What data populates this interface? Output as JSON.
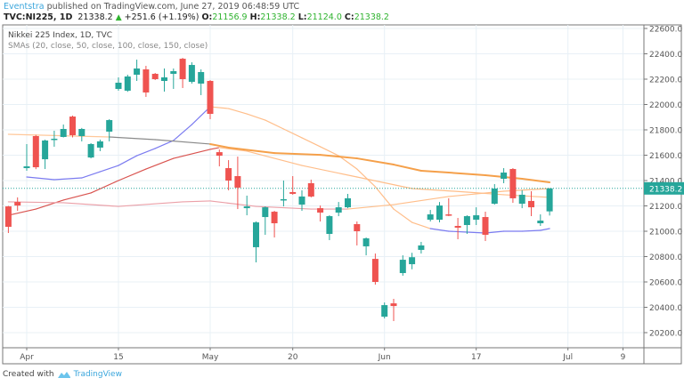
{
  "header": {
    "author": "Eventstra",
    "published_text": "published on TradingView.com, June 27, 2019 06:48:59 UTC",
    "symbol": "TVC:NI225, 1D",
    "last": "21338.2",
    "change": "+251.6 (+1.19%)",
    "o_label": "O:",
    "o": "21156.9",
    "h_label": "H:",
    "h": "21338.2",
    "l_label": "L:",
    "l": "21124.0",
    "c_label": "C:",
    "c": "21338.2",
    "change_icon": "triangle-up-icon"
  },
  "legend": {
    "title": "Nikkei 225 Index, 1D, TVC",
    "studies": "SMAs (20, close, 50, close, 100, close, 150, close)"
  },
  "footer": {
    "created_with": "Created with",
    "brand": "TradingView",
    "logo_icon": "tradingview-logo-icon"
  },
  "colors": {
    "up": "#26a69a",
    "down": "#ef5350",
    "price_line": "#26a69a",
    "grid": "#e8f0f6",
    "axis": "#777777"
  },
  "chart_data": {
    "type": "candlestick",
    "title": "Nikkei 225 Index, 1D, TVC",
    "ylim": [
      20100,
      22650
    ],
    "yticks": [
      "20200.0",
      "20400.0",
      "20600.0",
      "20800.0",
      "21000.0",
      "21200.0",
      "21400.0",
      "21600.0",
      "21800.0",
      "22000.0",
      "22200.0",
      "22400.0",
      "22600.0"
    ],
    "xticks": [
      {
        "label": "Apr",
        "date": "2019-04-01"
      },
      {
        "label": "15",
        "date": "2019-04-15"
      },
      {
        "label": "May",
        "date": "2019-05-07"
      },
      {
        "label": "20",
        "date": "2019-05-20"
      },
      {
        "label": "Jun",
        "date": "2019-06-03"
      },
      {
        "label": "17",
        "date": "2019-06-17"
      },
      {
        "label": "Jul",
        "date": "2019-07-01"
      },
      {
        "label": "9",
        "date": "2019-07-09"
      }
    ],
    "grid": true,
    "last_price_label": "21338.2",
    "last_price": 21338.2,
    "candles": [
      {
        "date": "2019-03-28",
        "o": 21196,
        "h": 21200,
        "l": 20986,
        "c": 21035
      },
      {
        "date": "2019-03-29",
        "o": 21231,
        "h": 21267,
        "l": 21161,
        "c": 21203
      },
      {
        "date": "2019-04-01",
        "o": 21498,
        "h": 21688,
        "l": 21477,
        "c": 21512
      },
      {
        "date": "2019-04-02",
        "o": 21751,
        "h": 21760,
        "l": 21490,
        "c": 21505
      },
      {
        "date": "2019-04-03",
        "o": 21568,
        "h": 21723,
        "l": 21491,
        "c": 21716
      },
      {
        "date": "2019-04-04",
        "o": 21723,
        "h": 21793,
        "l": 21667,
        "c": 21730
      },
      {
        "date": "2019-04-05",
        "o": 21744,
        "h": 21842,
        "l": 21740,
        "c": 21807
      },
      {
        "date": "2019-04-08",
        "o": 21905,
        "h": 21912,
        "l": 21740,
        "c": 21758
      },
      {
        "date": "2019-04-09",
        "o": 21751,
        "h": 21815,
        "l": 21709,
        "c": 21807
      },
      {
        "date": "2019-04-10",
        "o": 21582,
        "h": 21695,
        "l": 21575,
        "c": 21688
      },
      {
        "date": "2019-04-11",
        "o": 21660,
        "h": 21723,
        "l": 21632,
        "c": 21709
      },
      {
        "date": "2019-04-12",
        "o": 21786,
        "h": 21884,
        "l": 21709,
        "c": 21877
      },
      {
        "date": "2019-04-15",
        "o": 22123,
        "h": 22214,
        "l": 22109,
        "c": 22172
      },
      {
        "date": "2019-04-16",
        "o": 22109,
        "h": 22235,
        "l": 22100,
        "c": 22221
      },
      {
        "date": "2019-04-17",
        "o": 22235,
        "h": 22354,
        "l": 22186,
        "c": 22284
      },
      {
        "date": "2019-04-18",
        "o": 22277,
        "h": 22305,
        "l": 22060,
        "c": 22095
      },
      {
        "date": "2019-04-19",
        "o": 22242,
        "h": 22249,
        "l": 22193,
        "c": 22200
      },
      {
        "date": "2019-04-22",
        "o": 22186,
        "h": 22284,
        "l": 22102,
        "c": 22214
      },
      {
        "date": "2019-04-23",
        "o": 22242,
        "h": 22284,
        "l": 22123,
        "c": 22263
      },
      {
        "date": "2019-04-24",
        "o": 22361,
        "h": 22368,
        "l": 22130,
        "c": 22200
      },
      {
        "date": "2019-04-25",
        "o": 22179,
        "h": 22333,
        "l": 22165,
        "c": 22312
      },
      {
        "date": "2019-04-26",
        "o": 22165,
        "h": 22277,
        "l": 22074,
        "c": 22256
      },
      {
        "date": "2019-05-07",
        "o": 22186,
        "h": 22193,
        "l": 21884,
        "c": 21926
      },
      {
        "date": "2019-05-08",
        "o": 21624,
        "h": 21645,
        "l": 21512,
        "c": 21596
      },
      {
        "date": "2019-05-09",
        "o": 21498,
        "h": 21561,
        "l": 21323,
        "c": 21400
      },
      {
        "date": "2019-05-10",
        "o": 21435,
        "h": 21589,
        "l": 21175,
        "c": 21344
      },
      {
        "date": "2019-05-13",
        "o": 21182,
        "h": 21281,
        "l": 21126,
        "c": 21196
      },
      {
        "date": "2019-05-14",
        "o": 20874,
        "h": 21077,
        "l": 20754,
        "c": 21070
      },
      {
        "date": "2019-05-15",
        "o": 21112,
        "h": 21196,
        "l": 20972,
        "c": 21189
      },
      {
        "date": "2019-05-16",
        "o": 21154,
        "h": 21161,
        "l": 20951,
        "c": 21063
      },
      {
        "date": "2019-05-17",
        "o": 21246,
        "h": 21400,
        "l": 21196,
        "c": 21253
      },
      {
        "date": "2019-05-20",
        "o": 21309,
        "h": 21435,
        "l": 21288,
        "c": 21295
      },
      {
        "date": "2019-05-21",
        "o": 21210,
        "h": 21323,
        "l": 21161,
        "c": 21274
      },
      {
        "date": "2019-05-22",
        "o": 21379,
        "h": 21407,
        "l": 21267,
        "c": 21274
      },
      {
        "date": "2019-05-23",
        "o": 21182,
        "h": 21203,
        "l": 21077,
        "c": 21147
      },
      {
        "date": "2019-05-24",
        "o": 20979,
        "h": 21126,
        "l": 20930,
        "c": 21119
      },
      {
        "date": "2019-05-27",
        "o": 21147,
        "h": 21231,
        "l": 21119,
        "c": 21189
      },
      {
        "date": "2019-05-28",
        "o": 21189,
        "h": 21295,
        "l": 21182,
        "c": 21260
      },
      {
        "date": "2019-05-29",
        "o": 21056,
        "h": 21077,
        "l": 20888,
        "c": 21000
      },
      {
        "date": "2019-05-30",
        "o": 20881,
        "h": 20951,
        "l": 20810,
        "c": 20944
      },
      {
        "date": "2019-05-31",
        "o": 20782,
        "h": 20824,
        "l": 20579,
        "c": 20600
      },
      {
        "date": "2019-06-03",
        "o": 20326,
        "h": 20438,
        "l": 20312,
        "c": 20417
      },
      {
        "date": "2019-06-04",
        "o": 20431,
        "h": 20467,
        "l": 20291,
        "c": 20410
      },
      {
        "date": "2019-06-05",
        "o": 20670,
        "h": 20810,
        "l": 20649,
        "c": 20775
      },
      {
        "date": "2019-06-06",
        "o": 20740,
        "h": 20830,
        "l": 20700,
        "c": 20795
      },
      {
        "date": "2019-06-07",
        "o": 20853,
        "h": 20916,
        "l": 20824,
        "c": 20888
      },
      {
        "date": "2019-06-10",
        "o": 21091,
        "h": 21168,
        "l": 21077,
        "c": 21133
      },
      {
        "date": "2019-06-11",
        "o": 21091,
        "h": 21231,
        "l": 21070,
        "c": 21203
      },
      {
        "date": "2019-06-12",
        "o": 21133,
        "h": 21260,
        "l": 21119,
        "c": 21126
      },
      {
        "date": "2019-06-13",
        "o": 21042,
        "h": 21105,
        "l": 20937,
        "c": 21028
      },
      {
        "date": "2019-06-14",
        "o": 21049,
        "h": 21126,
        "l": 20979,
        "c": 21119
      },
      {
        "date": "2019-06-17",
        "o": 21091,
        "h": 21189,
        "l": 21049,
        "c": 21126
      },
      {
        "date": "2019-06-18",
        "o": 21112,
        "h": 21154,
        "l": 20923,
        "c": 20972
      },
      {
        "date": "2019-06-19",
        "o": 21217,
        "h": 21372,
        "l": 21210,
        "c": 21337
      },
      {
        "date": "2019-06-20",
        "o": 21414,
        "h": 21498,
        "l": 21379,
        "c": 21463
      },
      {
        "date": "2019-06-21",
        "o": 21491,
        "h": 21498,
        "l": 21224,
        "c": 21260
      },
      {
        "date": "2019-06-24",
        "o": 21217,
        "h": 21323,
        "l": 21182,
        "c": 21288
      },
      {
        "date": "2019-06-25",
        "o": 21239,
        "h": 21316,
        "l": 21119,
        "c": 21189
      },
      {
        "date": "2019-06-26",
        "o": 21063,
        "h": 21133,
        "l": 21042,
        "c": 21084
      },
      {
        "date": "2019-06-27",
        "o": 21156.9,
        "h": 21338.2,
        "l": 21124.0,
        "c": 21338.2
      }
    ],
    "series": [
      {
        "period": 20,
        "points": [
          [
            "2019-04-01",
            21428
          ],
          [
            "2019-04-04",
            21407
          ],
          [
            "2019-04-09",
            21421
          ],
          [
            "2019-04-11",
            21470
          ],
          [
            "2019-04-15",
            21519
          ],
          [
            "2019-04-17",
            21596
          ],
          [
            "2019-04-19",
            21653
          ],
          [
            "2019-04-23",
            21716
          ],
          [
            "2019-04-25",
            21842
          ],
          [
            "2019-05-07",
            21982
          ],
          [
            "2019-05-09",
            21968
          ],
          [
            "2019-05-13",
            21926
          ],
          [
            "2019-05-15",
            21877
          ],
          [
            "2019-05-17",
            21807
          ],
          [
            "2019-05-21",
            21737
          ],
          [
            "2019-05-23",
            21667
          ],
          [
            "2019-05-27",
            21596
          ],
          [
            "2019-05-29",
            21491
          ],
          [
            "2019-05-31",
            21351
          ],
          [
            "2019-06-04",
            21175
          ],
          [
            "2019-06-06",
            21070
          ],
          [
            "2019-06-10",
            21021
          ],
          [
            "2019-06-12",
            21000
          ],
          [
            "2019-06-14",
            20993
          ],
          [
            "2019-06-18",
            20986
          ],
          [
            "2019-06-20",
            21000
          ],
          [
            "2019-06-24",
            21000
          ],
          [
            "2019-06-26",
            21007
          ],
          [
            "2019-06-27",
            21021
          ]
        ],
        "colors": [
          {
            "until": "2019-05-07",
            "color": "#7b7bf0"
          },
          {
            "until": "2019-06-10",
            "color": "#ffbe8a"
          },
          {
            "until": "2019-06-27",
            "color": "#7b7bf0"
          }
        ]
      },
      {
        "period": 50,
        "points": [
          [
            "2019-03-28",
            21126
          ],
          [
            "2019-04-02",
            21175
          ],
          [
            "2019-04-05",
            21246
          ],
          [
            "2019-04-10",
            21302
          ],
          [
            "2019-04-15",
            21400
          ],
          [
            "2019-04-18",
            21491
          ],
          [
            "2019-04-23",
            21575
          ],
          [
            "2019-05-07",
            21646
          ],
          [
            "2019-05-08",
            21660
          ],
          [
            "2019-05-13",
            21632
          ],
          [
            "2019-05-21",
            21519
          ],
          [
            "2019-05-29",
            21428
          ],
          [
            "2019-06-06",
            21337
          ],
          [
            "2019-06-14",
            21309
          ],
          [
            "2019-06-20",
            21288
          ],
          [
            "2019-06-27",
            21267
          ]
        ],
        "colors": [
          {
            "until": "2019-05-08",
            "color": "#d9534f"
          },
          {
            "until": "2019-06-27",
            "color": "#ffbe8a"
          }
        ]
      },
      {
        "period": 100,
        "points": [
          [
            "2019-03-28",
            21765
          ],
          [
            "2019-04-12",
            21744
          ],
          [
            "2019-04-19",
            21723
          ],
          [
            "2019-05-07",
            21688
          ],
          [
            "2019-05-09",
            21660
          ],
          [
            "2019-05-16",
            21617
          ],
          [
            "2019-05-23",
            21603
          ],
          [
            "2019-05-29",
            21575
          ],
          [
            "2019-06-04",
            21526
          ],
          [
            "2019-06-07",
            21477
          ],
          [
            "2019-06-12",
            21463
          ],
          [
            "2019-06-18",
            21442
          ],
          [
            "2019-06-24",
            21414
          ],
          [
            "2019-06-27",
            21386
          ]
        ],
        "colors": [
          {
            "until": "2019-04-12",
            "color": "#ffc89a"
          },
          {
            "until": "2019-05-07",
            "color": "#8a8a8a"
          },
          {
            "until": "2019-06-27",
            "color": "#f5a04a"
          }
        ]
      },
      {
        "period": 150,
        "points": [
          [
            "2019-03-28",
            21232
          ],
          [
            "2019-04-05",
            21225
          ],
          [
            "2019-04-15",
            21196
          ],
          [
            "2019-04-24",
            21232
          ],
          [
            "2019-05-07",
            21239
          ],
          [
            "2019-05-14",
            21196
          ],
          [
            "2019-05-22",
            21175
          ],
          [
            "2019-05-28",
            21175
          ],
          [
            "2019-06-04",
            21210
          ],
          [
            "2019-06-12",
            21274
          ],
          [
            "2019-06-20",
            21316
          ],
          [
            "2019-06-27",
            21337
          ]
        ],
        "colors": [
          {
            "until": "2019-05-28",
            "color": "#eba0a8"
          },
          {
            "until": "2019-06-27",
            "color": "#ffbe8a"
          }
        ]
      }
    ]
  }
}
